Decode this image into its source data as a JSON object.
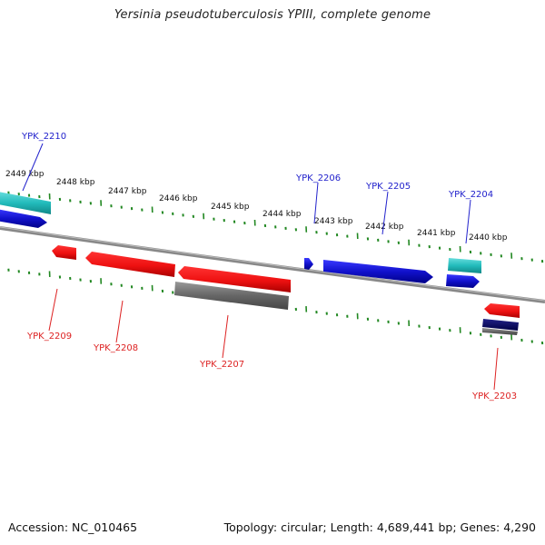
{
  "title": "Yersinia pseudotuberculosis YPIII, complete genome",
  "footer": {
    "accession": "Accession: NC_010465",
    "summary": "Topology: circular; Length: 4,689,441 bp; Genes: 4,290"
  },
  "colors": {
    "forward_gene": "#1111cc",
    "reverse_gene": "#ee1111",
    "cyan_feature": "#22bbbb",
    "gray_feature": "#666666",
    "navy_feature": "#000066",
    "tick": "#228822",
    "backbone": "#888888"
  },
  "scale_labels": [
    "2449 kbp",
    "2448 kbp",
    "2447 kbp",
    "2446 kbp",
    "2445 kbp",
    "2444 kbp",
    "2443 kbp",
    "2442 kbp",
    "2441 kbp",
    "2440 kbp"
  ],
  "genes_top": [
    {
      "label": "YPK_2210"
    },
    {
      "label": "YPK_2206"
    },
    {
      "label": "YPK_2205"
    },
    {
      "label": "YPK_2204"
    }
  ],
  "genes_bottom": [
    {
      "label": "YPK_2209"
    },
    {
      "label": "YPK_2208"
    },
    {
      "label": "YPK_2207"
    },
    {
      "label": "YPK_2203"
    }
  ]
}
